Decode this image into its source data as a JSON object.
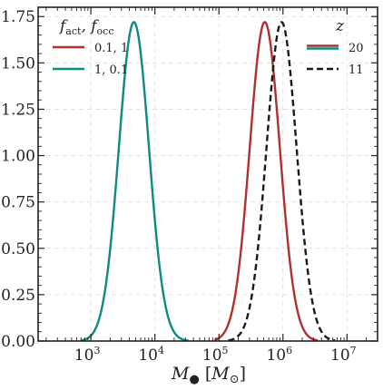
{
  "chart_data": {
    "type": "line",
    "xscale": "log",
    "xlim": [
      150,
      30000000
    ],
    "ylim": [
      0.0,
      1.8
    ],
    "xlabel": "M• [M⊙]",
    "ylabel": "",
    "grid": true,
    "x_ticks": [
      {
        "value": 1000,
        "base": "10",
        "exp": "3"
      },
      {
        "value": 10000,
        "base": "10",
        "exp": "4"
      },
      {
        "value": 100000,
        "base": "10",
        "exp": "5"
      },
      {
        "value": 1000000,
        "base": "10",
        "exp": "6"
      },
      {
        "value": 10000000,
        "base": "10",
        "exp": "7"
      }
    ],
    "y_ticks": [
      {
        "value": 0.0,
        "label": "0.00"
      },
      {
        "value": 0.25,
        "label": "0.25"
      },
      {
        "value": 0.5,
        "label": "0.50"
      },
      {
        "value": 0.75,
        "label": "0.75"
      },
      {
        "value": 1.0,
        "label": "1.00"
      },
      {
        "value": 1.25,
        "label": "1.25"
      },
      {
        "value": 1.5,
        "label": "1.50"
      },
      {
        "value": 1.75,
        "label": "1.75"
      }
    ],
    "series": [
      {
        "name": "0.1, 1",
        "color": "#b03030",
        "dash": "solid",
        "peak_x": 520000,
        "peak_y": 1.72,
        "sigma_dex": 0.235,
        "xmin": 85000,
        "xmax": 3500000
      },
      {
        "name": "1, 0.1",
        "color": "#0e8a82",
        "dash": "solid",
        "peak_x": 4700,
        "peak_y": 1.72,
        "sigma_dex": 0.235,
        "xmin": 700,
        "xmax": 33000
      },
      {
        "name": "11",
        "color": "#1a1a1a",
        "dash": "dashed",
        "peak_x": 950000,
        "peak_y": 1.72,
        "sigma_dex": 0.235,
        "xmin": 140000,
        "xmax": 6500000
      }
    ],
    "legend_left": {
      "placement": "top-left",
      "title_main": "f",
      "title_sub1": "act",
      "title_sep": ", f",
      "title_sub2": "occ",
      "entries": [
        {
          "label": "0.1, 1",
          "color": "#b03030",
          "dash": "solid"
        },
        {
          "label": "1, 0.1",
          "color": "#0e8a82",
          "dash": "solid"
        }
      ]
    },
    "legend_right": {
      "placement": "top-right",
      "title": "z",
      "entries": [
        {
          "label": "20",
          "color": "#b03030",
          "color2": "#0e8a82",
          "dash": "solid"
        },
        {
          "label": "11",
          "color": "#1a1a1a",
          "dash": "dashed"
        }
      ]
    }
  }
}
